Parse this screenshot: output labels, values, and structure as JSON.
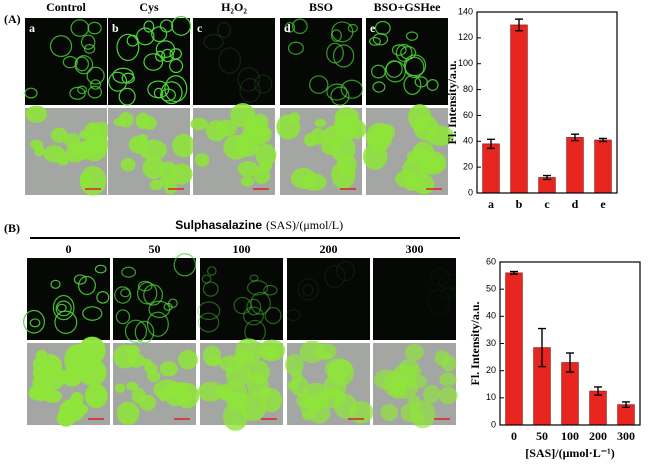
{
  "figure": {
    "panel_a": {
      "label": "(A)",
      "columns": [
        "Control",
        "Cys",
        "H₂O₂",
        "BSO",
        "BSO+GSHee"
      ],
      "image_letters": [
        "a",
        "b",
        "c",
        "d",
        "e"
      ]
    },
    "panel_b": {
      "label": "(B)",
      "title": "Sulphasalazine",
      "title_unit": "(SAS)/(μmol/L)",
      "columns": [
        "0",
        "50",
        "100",
        "200",
        "300"
      ]
    }
  },
  "chart_data": [
    {
      "type": "bar",
      "y_label": "Fl. Intensity/a.u.",
      "categories": [
        "a",
        "b",
        "c",
        "d",
        "e"
      ],
      "values": [
        38,
        130,
        12,
        43,
        41
      ],
      "errors": [
        3.5,
        4.5,
        1.5,
        2.5,
        1.2
      ],
      "color": "#e8261f",
      "ylim": [
        0,
        140
      ],
      "yticks": [
        0,
        20,
        40,
        60,
        80,
        100,
        120,
        140
      ]
    },
    {
      "type": "bar",
      "y_label": "Fl. Intensity/a.u.",
      "x_label": "[SAS]/(μmol·L⁻¹)",
      "categories": [
        "0",
        "50",
        "100",
        "200",
        "300"
      ],
      "values": [
        56,
        28.5,
        23,
        12.5,
        7.5
      ],
      "errors": [
        0.5,
        7,
        3.5,
        1.5,
        1
      ],
      "color": "#e8261f",
      "ylim": [
        0,
        60
      ],
      "yticks": [
        0,
        10,
        20,
        30,
        40,
        50,
        60
      ]
    }
  ]
}
